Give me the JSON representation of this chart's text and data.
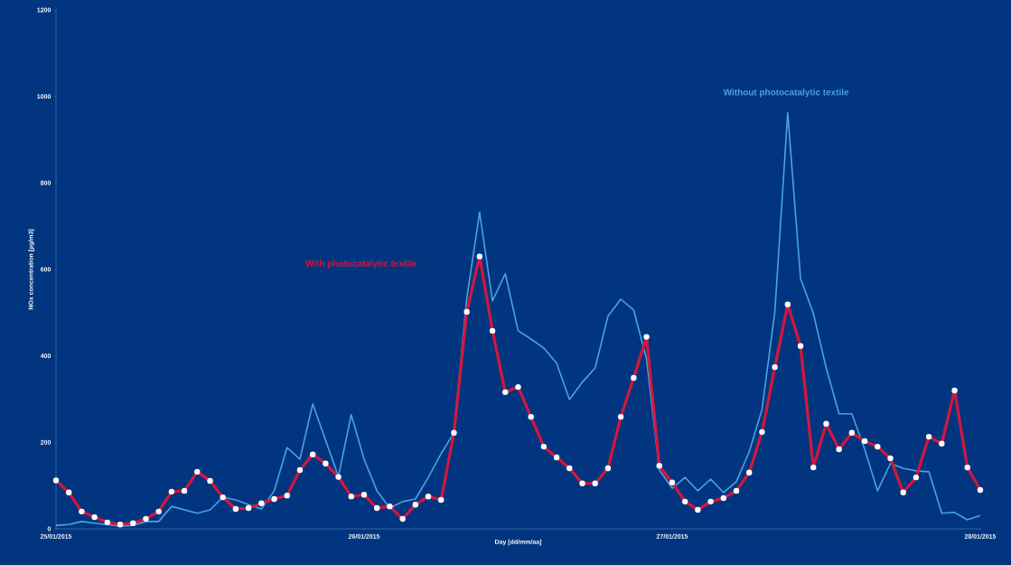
{
  "chart_data": {
    "type": "line",
    "xlabel": "Day [dd/mm/aa]",
    "ylabel": "NOx concentration [µg/m3]",
    "x": [
      "2015-01-25T00:00",
      "2015-01-25T01:00",
      "2015-01-25T02:00",
      "2015-01-25T03:00",
      "2015-01-25T04:00",
      "2015-01-25T05:00",
      "2015-01-25T06:00",
      "2015-01-25T07:00",
      "2015-01-25T08:00",
      "2015-01-25T09:00",
      "2015-01-25T10:00",
      "2015-01-25T11:00",
      "2015-01-25T12:00",
      "2015-01-25T13:00",
      "2015-01-25T14:00",
      "2015-01-25T15:00",
      "2015-01-25T16:00",
      "2015-01-25T17:00",
      "2015-01-25T18:00",
      "2015-01-25T19:00",
      "2015-01-25T20:00",
      "2015-01-25T21:00",
      "2015-01-25T22:00",
      "2015-01-25T23:00",
      "2015-01-26T00:00",
      "2015-01-26T01:00",
      "2015-01-26T02:00",
      "2015-01-26T03:00",
      "2015-01-26T04:00",
      "2015-01-26T05:00",
      "2015-01-26T06:00",
      "2015-01-26T07:00",
      "2015-01-26T08:00",
      "2015-01-26T09:00",
      "2015-01-26T10:00",
      "2015-01-26T11:00",
      "2015-01-26T12:00",
      "2015-01-26T13:00",
      "2015-01-26T14:00",
      "2015-01-26T15:00",
      "2015-01-26T16:00",
      "2015-01-26T17:00",
      "2015-01-26T18:00",
      "2015-01-26T19:00",
      "2015-01-26T20:00",
      "2015-01-26T21:00",
      "2015-01-26T22:00",
      "2015-01-26T23:00",
      "2015-01-27T00:00",
      "2015-01-27T01:00",
      "2015-01-27T02:00",
      "2015-01-27T03:00",
      "2015-01-27T04:00",
      "2015-01-27T05:00",
      "2015-01-27T06:00",
      "2015-01-27T07:00",
      "2015-01-27T08:00",
      "2015-01-27T09:00",
      "2015-01-27T10:00",
      "2015-01-27T11:00",
      "2015-01-27T12:00",
      "2015-01-27T13:00",
      "2015-01-27T14:00",
      "2015-01-27T15:00",
      "2015-01-27T16:00",
      "2015-01-27T17:00",
      "2015-01-27T18:00",
      "2015-01-27T19:00",
      "2015-01-27T20:00",
      "2015-01-27T21:00",
      "2015-01-27T22:00",
      "2015-01-27T23:00",
      "2015-01-28T00:00"
    ],
    "series": [
      {
        "name": "Without photocatalytic textile",
        "color": "#4aa3e0",
        "marker": "none",
        "values": [
          8,
          10,
          17,
          13,
          10,
          6,
          8,
          17,
          17,
          52,
          44,
          36,
          44,
          73,
          67,
          56,
          46,
          88,
          188,
          161,
          289,
          205,
          121,
          264,
          161,
          88,
          48,
          63,
          69,
          119,
          174,
          222,
          533,
          732,
          527,
          590,
          458,
          439,
          418,
          383,
          299,
          339,
          372,
          492,
          531,
          506,
          393,
          136,
          94,
          119,
          88,
          115,
          84,
          109,
          178,
          276,
          502,
          962,
          579,
          498,
          372,
          266,
          266,
          184,
          88,
          151,
          140,
          134,
          132,
          36,
          38,
          21,
          31
        ]
      },
      {
        "name": "With photocatalytic textile",
        "color": "#d4163c",
        "marker": "circle",
        "values": [
          112,
          84,
          40,
          27,
          15,
          10,
          13,
          23,
          40,
          86,
          88,
          132,
          111,
          73,
          46,
          48,
          59,
          69,
          77,
          136,
          172,
          151,
          120,
          75,
          79,
          48,
          52,
          23,
          56,
          75,
          67,
          222,
          502,
          630,
          458,
          316,
          328,
          259,
          190,
          165,
          140,
          105,
          105,
          140,
          259,
          349,
          444,
          146,
          107,
          63,
          44,
          63,
          71,
          88,
          130,
          224,
          374,
          519,
          423,
          142,
          243,
          184,
          222,
          203,
          190,
          163,
          84,
          119,
          213,
          197,
          320,
          142,
          90
        ]
      }
    ],
    "xlim": [
      "2015-01-25",
      "2015-01-28"
    ],
    "xticks": [
      {
        "value": "2015-01-25",
        "label": "25/01/2015"
      },
      {
        "value": "2015-01-26",
        "label": "26/01/2015"
      },
      {
        "value": "2015-01-27",
        "label": "27/01/2015"
      },
      {
        "value": "2015-01-28",
        "label": "28/01/2015"
      }
    ],
    "ylim": [
      0,
      1200
    ],
    "yticks": [
      0,
      200,
      400,
      600,
      800,
      1000,
      1200
    ],
    "grid": false,
    "legend": false
  }
}
